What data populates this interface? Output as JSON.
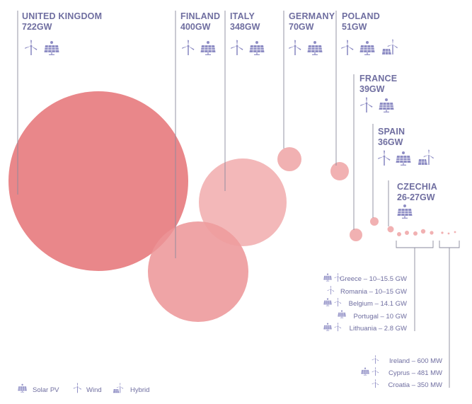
{
  "major": [
    {
      "name": "UNITED KINGDOM",
      "capacity": "722GW",
      "icons": [
        "wind",
        "solar"
      ]
    },
    {
      "name": "FINLAND",
      "capacity": "400GW",
      "icons": [
        "wind",
        "solar"
      ]
    },
    {
      "name": "ITALY",
      "capacity": "348GW",
      "icons": [
        "wind",
        "solar"
      ]
    },
    {
      "name": "GERMANY",
      "capacity": "70GW",
      "icons": [
        "wind",
        "solar"
      ]
    },
    {
      "name": "POLAND",
      "capacity": "51GW",
      "icons": [
        "wind",
        "solar",
        "hybrid"
      ]
    },
    {
      "name": "FRANCE",
      "capacity": "39GW",
      "icons": [
        "wind",
        "solar"
      ]
    },
    {
      "name": "SPAIN",
      "capacity": "36GW",
      "icons": [
        "wind",
        "solar",
        "hybrid"
      ]
    },
    {
      "name": "CZECHIA",
      "capacity": "26-27GW",
      "icons": [
        "solar"
      ]
    }
  ],
  "group_gw": [
    {
      "label": "Greece – 10–15.5 GW",
      "icons": [
        "solar",
        "wind"
      ]
    },
    {
      "label": "Romania – 10–15 GW",
      "icons": [
        "wind"
      ]
    },
    {
      "label": "Belgium – 14.1 GW",
      "icons": [
        "solar",
        "wind"
      ]
    },
    {
      "label": "Portugal – 10 GW",
      "icons": [
        "solar"
      ]
    },
    {
      "label": "Lithuania – 2.8 GW",
      "icons": [
        "solar",
        "wind"
      ]
    }
  ],
  "group_mw": [
    {
      "label": "Ireland – 600 MW",
      "icons": [
        "wind"
      ]
    },
    {
      "label": "Cyprus – 481 MW",
      "icons": [
        "solar",
        "wind"
      ]
    },
    {
      "label": "Croatia – 350 MW",
      "icons": [
        "wind"
      ]
    }
  ],
  "legend": [
    {
      "label": "Solar PV",
      "icon": "solar"
    },
    {
      "label": "Wind",
      "icon": "wind"
    },
    {
      "label": "Hybrid",
      "icon": "hybrid"
    }
  ],
  "colors": {
    "bubble_large": "#e77d80",
    "bubble_mid": "#ee9ea0",
    "bubble_small": "#f1b1b2",
    "text": "#6f6ea0",
    "icon": "#8e8dc4"
  }
}
